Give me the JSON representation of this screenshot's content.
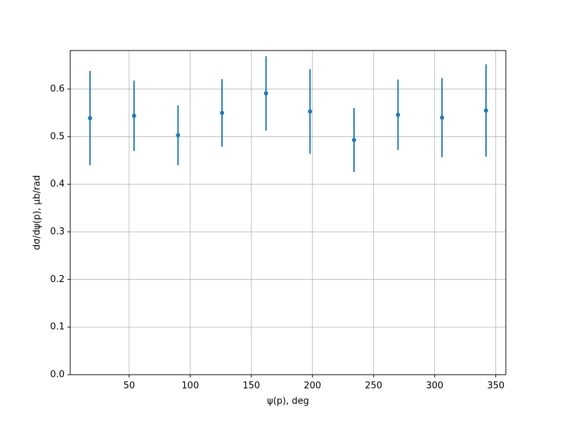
{
  "chart_data": {
    "type": "errorbar",
    "xlabel": "ψ(p), deg",
    "ylabel": "dσ/dψ(p), μb/rad",
    "x": [
      18,
      54,
      90,
      126,
      162,
      198,
      234,
      270,
      306,
      342
    ],
    "values": [
      0.539,
      0.544,
      0.503,
      0.55,
      0.591,
      0.553,
      0.493,
      0.546,
      0.54,
      0.555
    ],
    "errors": [
      0.099,
      0.074,
      0.063,
      0.071,
      0.078,
      0.089,
      0.067,
      0.074,
      0.083,
      0.097
    ],
    "color": "#1f77b4",
    "xlim": [
      1.8,
      358.2
    ],
    "ylim": [
      0,
      0.681
    ],
    "xticks": [
      50,
      100,
      150,
      200,
      250,
      300,
      350
    ],
    "yticks": [
      {
        "value": 0,
        "label": "0.0"
      },
      0.1,
      0.2,
      0.3,
      0.4,
      0.5,
      0.6
    ],
    "grid": true
  }
}
